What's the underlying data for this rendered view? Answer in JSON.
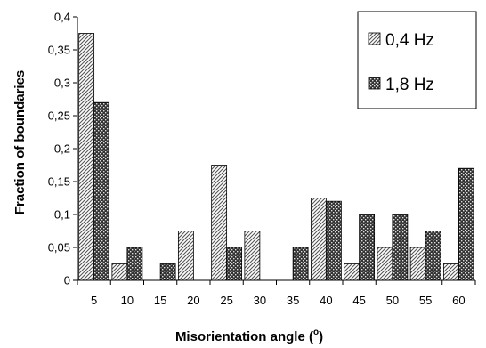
{
  "chart_data": {
    "type": "bar",
    "categories": [
      "5",
      "10",
      "15",
      "20",
      "25",
      "30",
      "35",
      "40",
      "45",
      "50",
      "55",
      "60"
    ],
    "series": [
      {
        "name": "0,4 Hz",
        "values": [
          0.375,
          0.025,
          0,
          0.075,
          0.175,
          0.075,
          0,
          0.125,
          0.025,
          0.05,
          0.05,
          0.025
        ],
        "pattern": "diagonal-hatch"
      },
      {
        "name": "1,8 Hz",
        "values": [
          0.27,
          0.05,
          0.025,
          0,
          0.05,
          0,
          0.05,
          0.12,
          0.1,
          0.1,
          0.075,
          0.17
        ],
        "pattern": "dark-crosshatch"
      }
    ],
    "yticks": [
      "0",
      "0,05",
      "0,1",
      "0,15",
      "0,2",
      "0,25",
      "0,3",
      "0,35",
      "0,4"
    ],
    "ylim": [
      0,
      0.4
    ],
    "xlabel": "Misorientation angle (",
    "xlabel_sup": "o",
    "xlabel_end": ")",
    "ylabel": "Fraction of boundaries",
    "legend_position": "top-right",
    "grid": false
  }
}
